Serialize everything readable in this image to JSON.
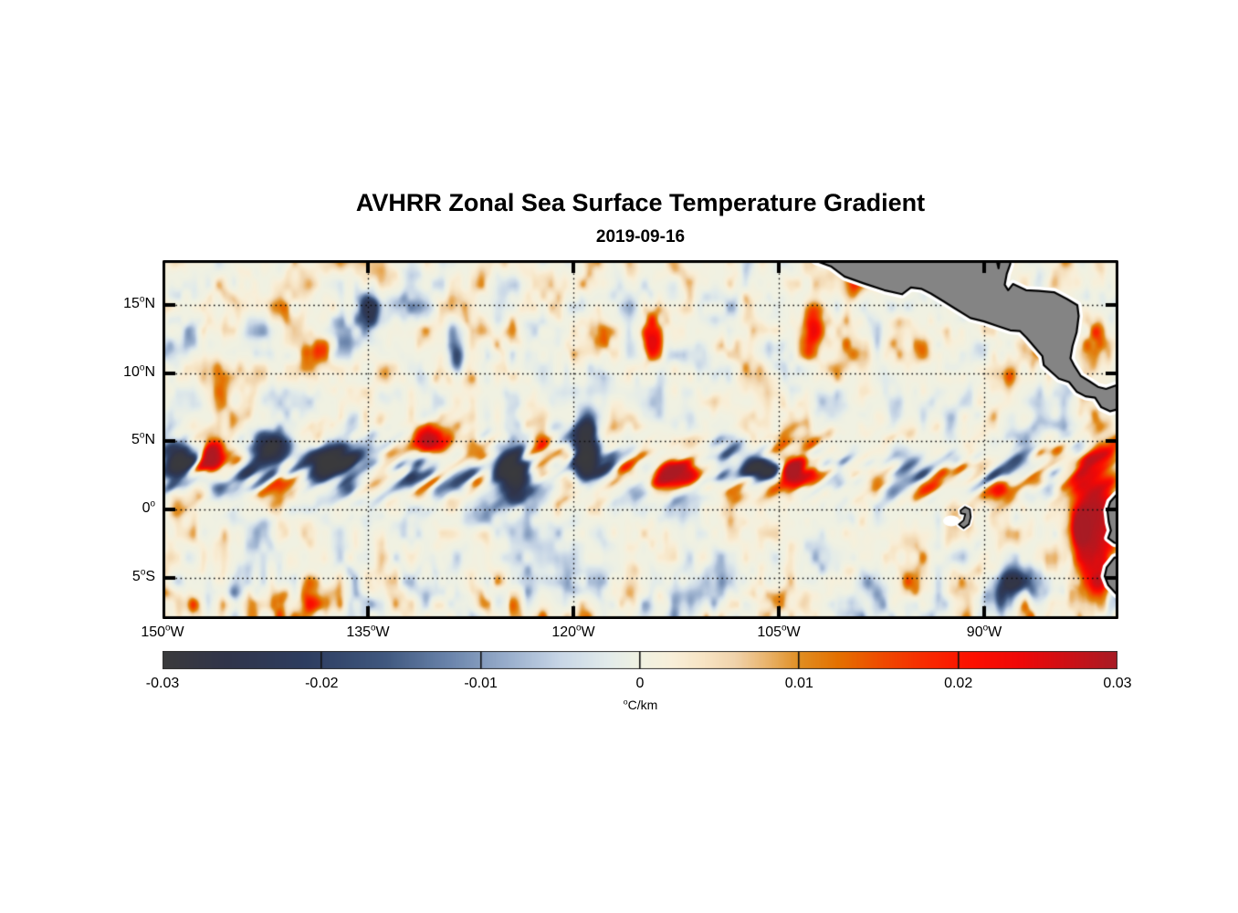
{
  "figure": {
    "title": "AVHRR Zonal Sea Surface Temperature Gradient",
    "subtitle": "2019-09-16"
  },
  "chart_data": {
    "type": "heatmap",
    "title": "AVHRR Zonal Sea Surface Temperature Gradient",
    "date": "2019-09-16",
    "variable": "zonal sea surface temperature gradient",
    "units_label": {
      "degree": "o",
      "text": "C/km"
    },
    "value_range": [
      -0.03,
      0.03
    ],
    "colorbar_tick_labels": [
      "-0.03",
      "-0.02",
      "-0.01",
      "0",
      "0.01",
      "0.02",
      "0.03"
    ],
    "x_tick_labels": [
      {
        "deg": 150,
        "suffix": "W"
      },
      {
        "deg": 135,
        "suffix": "W"
      },
      {
        "deg": 120,
        "suffix": "W"
      },
      {
        "deg": 105,
        "suffix": "W"
      },
      {
        "deg": 90,
        "suffix": "W"
      }
    ],
    "y_tick_labels": [
      {
        "deg": 15,
        "suffix": "N"
      },
      {
        "deg": 10,
        "suffix": "N"
      },
      {
        "deg": 5,
        "suffix": "N"
      },
      {
        "deg": 0,
        "suffix": ""
      },
      {
        "deg": 5,
        "suffix": "S"
      }
    ],
    "map_extent": {
      "lon_west_degW": 150,
      "lon_east_degW": 80.2,
      "lat_north_degN": 18.3,
      "lat_south_degN": -8.05
    },
    "grid": {
      "style": "dotted",
      "lon_lines_degW": [
        135,
        120,
        105,
        90
      ],
      "lat_lines_degN": [
        15,
        10,
        5,
        0,
        -5
      ]
    },
    "colormap_stops": [
      [
        -0.03,
        "#3a3a3c"
      ],
      [
        -0.026,
        "#30344a"
      ],
      [
        -0.021,
        "#2d3d60"
      ],
      [
        -0.016,
        "#40587f"
      ],
      [
        -0.012,
        "#6a84ab"
      ],
      [
        -0.008,
        "#9db2cf"
      ],
      [
        -0.005,
        "#c8d6e6"
      ],
      [
        -0.002,
        "#e2ebea"
      ],
      [
        0.0,
        "#f0f1e2"
      ],
      [
        0.002,
        "#f8efd9"
      ],
      [
        0.004,
        "#f7e4c4"
      ],
      [
        0.006,
        "#f0d3ab"
      ],
      [
        0.008,
        "#e9b36b"
      ],
      [
        0.01,
        "#e08e22"
      ],
      [
        0.0125,
        "#e47000"
      ],
      [
        0.015,
        "#ee4d00"
      ],
      [
        0.018,
        "#f82a00"
      ],
      [
        0.021,
        "#fc0f00"
      ],
      [
        0.024,
        "#ee0808"
      ],
      [
        0.027,
        "#cc1016"
      ],
      [
        0.03,
        "#a81b24"
      ]
    ],
    "land": {
      "fill": "#848484",
      "coastline": "#000000",
      "no_data_halo": "#ffffff",
      "regions": [
        "Mexico and Central America",
        "Galapagos Islands",
        "Ecuador and Peru coast"
      ],
      "polygons": {
        "central_america": [
          [
            103.8,
            19.2
          ],
          [
            102.3,
            18.25
          ],
          [
            101.2,
            17.85
          ],
          [
            100.2,
            17.1
          ],
          [
            98.8,
            16.6
          ],
          [
            97.3,
            16.1
          ],
          [
            96.0,
            15.8
          ],
          [
            95.35,
            16.3
          ],
          [
            94.6,
            16.2
          ],
          [
            93.9,
            15.85
          ],
          [
            93.0,
            15.3
          ],
          [
            92.2,
            14.8
          ],
          [
            91.0,
            14.05
          ],
          [
            90.0,
            13.8
          ],
          [
            89.0,
            13.45
          ],
          [
            88.1,
            13.15
          ],
          [
            87.4,
            13.1
          ],
          [
            86.9,
            12.6
          ],
          [
            86.3,
            11.9
          ],
          [
            85.75,
            11.25
          ],
          [
            85.65,
            10.6
          ],
          [
            85.05,
            10.05
          ],
          [
            84.55,
            9.6
          ],
          [
            83.8,
            9.35
          ],
          [
            83.25,
            8.65
          ],
          [
            82.6,
            8.3
          ],
          [
            81.9,
            8.2
          ],
          [
            81.45,
            7.5
          ],
          [
            80.8,
            7.2
          ],
          [
            80.1,
            7.4
          ],
          [
            79.6,
            7.9
          ],
          [
            79.6,
            9.4
          ],
          [
            80.4,
            9.1
          ],
          [
            81.1,
            8.85
          ],
          [
            81.7,
            9.0
          ],
          [
            82.3,
            9.4
          ],
          [
            82.95,
            9.8
          ],
          [
            83.45,
            10.6
          ],
          [
            83.7,
            11.1
          ],
          [
            83.55,
            12.0
          ],
          [
            83.25,
            13.0
          ],
          [
            83.1,
            14.2
          ],
          [
            83.2,
            15.0
          ],
          [
            83.95,
            15.45
          ],
          [
            84.9,
            15.95
          ],
          [
            86.0,
            16.05
          ],
          [
            86.95,
            16.1
          ],
          [
            87.9,
            16.55
          ],
          [
            88.25,
            16.1
          ],
          [
            88.5,
            16.5
          ],
          [
            88.35,
            17.3
          ],
          [
            88.1,
            18.0
          ],
          [
            87.95,
            19.2
          ],
          [
            88.75,
            19.2
          ],
          [
            88.95,
            17.7
          ],
          [
            89.3,
            19.2
          ]
        ],
        "ecuador": [
          [
            79.6,
            1.6
          ],
          [
            80.35,
            1.05
          ],
          [
            80.8,
            0.55
          ],
          [
            81.0,
            -0.1
          ],
          [
            80.9,
            -0.95
          ],
          [
            80.75,
            -1.55
          ],
          [
            80.95,
            -2.1
          ],
          [
            80.5,
            -2.45
          ],
          [
            79.6,
            -2.6
          ]
        ],
        "peru": [
          [
            79.6,
            -3.35
          ],
          [
            80.5,
            -3.55
          ],
          [
            81.05,
            -4.25
          ],
          [
            81.2,
            -4.9
          ],
          [
            80.95,
            -5.55
          ],
          [
            80.35,
            -6.2
          ],
          [
            79.8,
            -6.65
          ]
        ],
        "galapagos": [
          [
            91.73,
            -0.08
          ],
          [
            91.4,
            0.18
          ],
          [
            91.05,
            0.0
          ],
          [
            90.98,
            -0.55
          ],
          [
            91.12,
            -1.1
          ],
          [
            91.5,
            -1.38
          ],
          [
            91.85,
            -1.1
          ],
          [
            91.5,
            -0.8
          ],
          [
            91.38,
            -0.35
          ],
          [
            91.7,
            -0.3
          ]
        ]
      }
    },
    "notable_features": [
      {
        "lonW": 148.9,
        "lat": 3.5,
        "amp": -1.25,
        "rx_deg": 1.2,
        "ry_deg": 1.9
      },
      {
        "lonW": 146.5,
        "lat": 4.2,
        "amp": 1.0,
        "rx_deg": 0.8,
        "ry_deg": 1.3
      },
      {
        "lonW": 141.9,
        "lat": 4.6,
        "amp": -0.95,
        "rx_deg": 2.0,
        "ry_deg": 1.2
      },
      {
        "lonW": 137.9,
        "lat": 3.5,
        "amp": -1.15,
        "rx_deg": 1.7,
        "ry_deg": 1.5
      },
      {
        "lonW": 130.5,
        "lat": 5.2,
        "amp": 1.05,
        "rx_deg": 1.5,
        "ry_deg": 1.1
      },
      {
        "lonW": 124.5,
        "lat": 2.9,
        "amp": -1.15,
        "rx_deg": 1.3,
        "ry_deg": 1.9
      },
      {
        "lonW": 119.1,
        "lat": 4.9,
        "amp": -1.35,
        "rx_deg": 0.95,
        "ry_deg": 2.7
      },
      {
        "lonW": 112.2,
        "lat": 2.5,
        "amp": 1.1,
        "rx_deg": 2.0,
        "ry_deg": 0.95
      },
      {
        "lonW": 106.0,
        "lat": 2.9,
        "amp": -1.3,
        "rx_deg": 1.5,
        "ry_deg": 0.8
      },
      {
        "lonW": 104.0,
        "lat": 2.9,
        "amp": 1.2,
        "rx_deg": 0.95,
        "ry_deg": 0.8
      },
      {
        "lonW": 114.4,
        "lat": 12.6,
        "amp": 1.15,
        "rx_deg": 0.7,
        "ry_deg": 2.0
      },
      {
        "lonW": 102.7,
        "lat": 13.3,
        "amp": 1.15,
        "rx_deg": 0.8,
        "ry_deg": 2.3
      },
      {
        "lonW": 99.2,
        "lat": 17.3,
        "amp": 1.1,
        "rx_deg": 0.95,
        "ry_deg": 1.5
      },
      {
        "lonW": 134.9,
        "lat": 14.9,
        "amp": -1.2,
        "rx_deg": 0.9,
        "ry_deg": 1.35
      },
      {
        "lonW": 128.5,
        "lat": 10.9,
        "amp": -1.05,
        "rx_deg": 0.7,
        "ry_deg": 1.5
      },
      {
        "lonW": 88.2,
        "lat": -5.5,
        "amp": -1.05,
        "rx_deg": 1.75,
        "ry_deg": 1.35
      },
      {
        "lonW": 83.0,
        "lat": -1.2,
        "amp": 1.35,
        "rx_deg": 0.8,
        "ry_deg": 1.6
      }
    ]
  }
}
